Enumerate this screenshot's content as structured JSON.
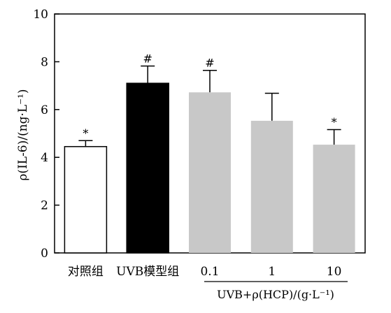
{
  "chart_data": {
    "type": "bar",
    "ylabel": "ρ(IL-6)/(ng·L⁻¹)",
    "ylim": [
      0,
      10
    ],
    "yticks": [
      0,
      2,
      4,
      6,
      8,
      10
    ],
    "categories": [
      "对照组",
      "UVB模型组",
      "0.1",
      "1",
      "10"
    ],
    "values": [
      4.45,
      7.1,
      6.72,
      5.53,
      4.53
    ],
    "errors": [
      0.25,
      0.72,
      0.92,
      1.15,
      0.63
    ],
    "significance": [
      "*",
      "#",
      "#",
      "",
      "*"
    ],
    "bar_colors": [
      "#ffffff",
      "#000000",
      "#c8c8c8",
      "#c8c8c8",
      "#c8c8c8"
    ],
    "group_label": "UVB+ρ(HCP)/(g·L⁻¹)",
    "grid": false
  }
}
